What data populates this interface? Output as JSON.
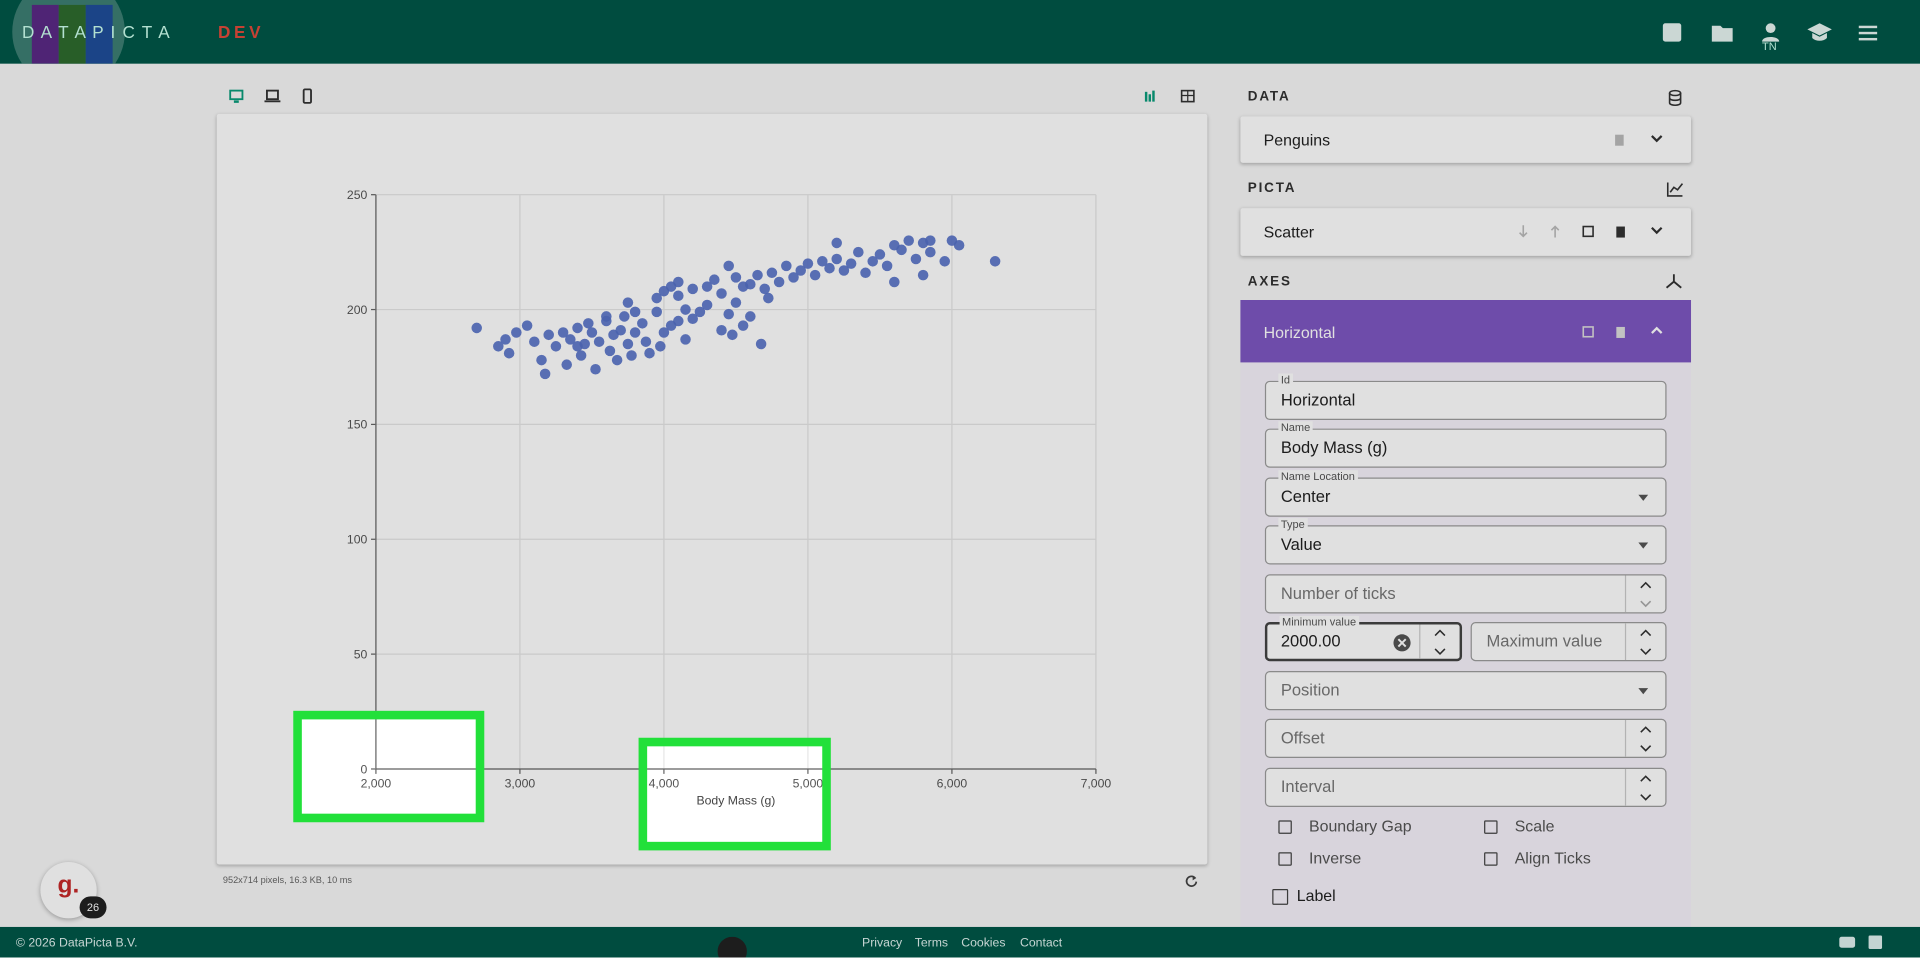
{
  "chart_data": {
    "type": "scatter",
    "x_label": "Body Mass (g)",
    "color": "#5470c6",
    "grid": true,
    "xlim": [
      2000,
      7000
    ],
    "xticks": [
      {
        "value": 2000,
        "label": "2,000"
      },
      {
        "value": 3000,
        "label": "3,000"
      },
      {
        "value": 4000,
        "label": "4,000"
      },
      {
        "value": 5000,
        "label": "5,000"
      },
      {
        "value": 6000,
        "label": "6,000"
      },
      {
        "value": 7000,
        "label": "7,000"
      }
    ],
    "ylim": [
      0,
      250
    ],
    "yticks": [
      0,
      50,
      100,
      150,
      200,
      250
    ],
    "x": [
      2700,
      2850,
      2900,
      2925,
      2975,
      3050,
      3100,
      3150,
      3175,
      3200,
      3250,
      3300,
      3325,
      3350,
      3400,
      3425,
      3450,
      3475,
      3500,
      3525,
      3550,
      3600,
      3625,
      3650,
      3675,
      3700,
      3725,
      3750,
      3775,
      3800,
      3850,
      3875,
      3900,
      3950,
      3975,
      4000,
      4050,
      4100,
      4150,
      4200,
      4250,
      4300,
      4400,
      4475,
      4500,
      4600,
      4675,
      4725,
      3400,
      3600,
      3750,
      3800,
      3950,
      4150,
      4450,
      4550,
      4000,
      4050,
      4100,
      4200,
      4300,
      4350,
      4400,
      4500,
      4550,
      4600,
      4650,
      4700,
      4750,
      4800,
      4850,
      4900,
      4950,
      5000,
      5050,
      5100,
      5150,
      5200,
      5250,
      5300,
      5350,
      5400,
      5450,
      5500,
      5550,
      5600,
      5650,
      5700,
      5750,
      5800,
      5850,
      5950,
      6000,
      6050,
      6300,
      5850,
      5200,
      4450,
      4100,
      5600,
      5800
    ],
    "y": [
      192,
      184,
      187,
      181,
      190,
      193,
      186,
      178,
      172,
      189,
      184,
      190,
      176,
      187,
      192,
      180,
      185,
      194,
      190,
      174,
      186,
      195,
      182,
      189,
      178,
      191,
      197,
      185,
      180,
      190,
      194,
      186,
      181,
      199,
      184,
      190,
      193,
      195,
      187,
      196,
      199,
      202,
      191,
      189,
      203,
      197,
      185,
      205,
      184,
      197,
      203,
      199,
      205,
      200,
      198,
      193,
      208,
      210,
      206,
      209,
      210,
      213,
      207,
      214,
      210,
      211,
      215,
      209,
      216,
      212,
      219,
      214,
      217,
      220,
      215,
      221,
      218,
      222,
      217,
      220,
      225,
      216,
      221,
      224,
      219,
      228,
      226,
      230,
      222,
      229,
      225,
      221,
      230,
      228,
      221,
      230,
      229,
      219,
      212,
      212,
      215
    ]
  },
  "header": {
    "logo": "D A T A P I C T A",
    "tag": "DEV",
    "user": "TN"
  },
  "panel": {
    "data_title": "DATA",
    "dataset": "Penguins",
    "picta_title": "PICTA",
    "picta": "Scatter",
    "axes_title": "AXES",
    "axis": "Horizontal",
    "fields": [
      {
        "label": "Id",
        "value": "Horizontal"
      },
      {
        "label": "Name",
        "value": "Body Mass (g)"
      },
      {
        "label": "Name Location",
        "value": "Center"
      },
      {
        "label": "Type",
        "value": "Value"
      }
    ],
    "placeholders": [
      "Number of ticks",
      "Maximum value",
      "Position",
      "Offset",
      "Interval"
    ],
    "min_label": "Minimum value",
    "min_value": "2000.00",
    "checks": [
      "Boundary Gap",
      "Scale",
      "Inverse",
      "Align Ticks",
      "Label"
    ]
  },
  "status": "952x714 pixels, 16.3 KB, 10 ms",
  "badge": {
    "letter": "g.",
    "count": "26"
  },
  "footer": {
    "copyright": "© 2026 DataPicta B.V.",
    "links": [
      "Privacy",
      "Terms",
      "Cookies",
      "Contact"
    ]
  }
}
